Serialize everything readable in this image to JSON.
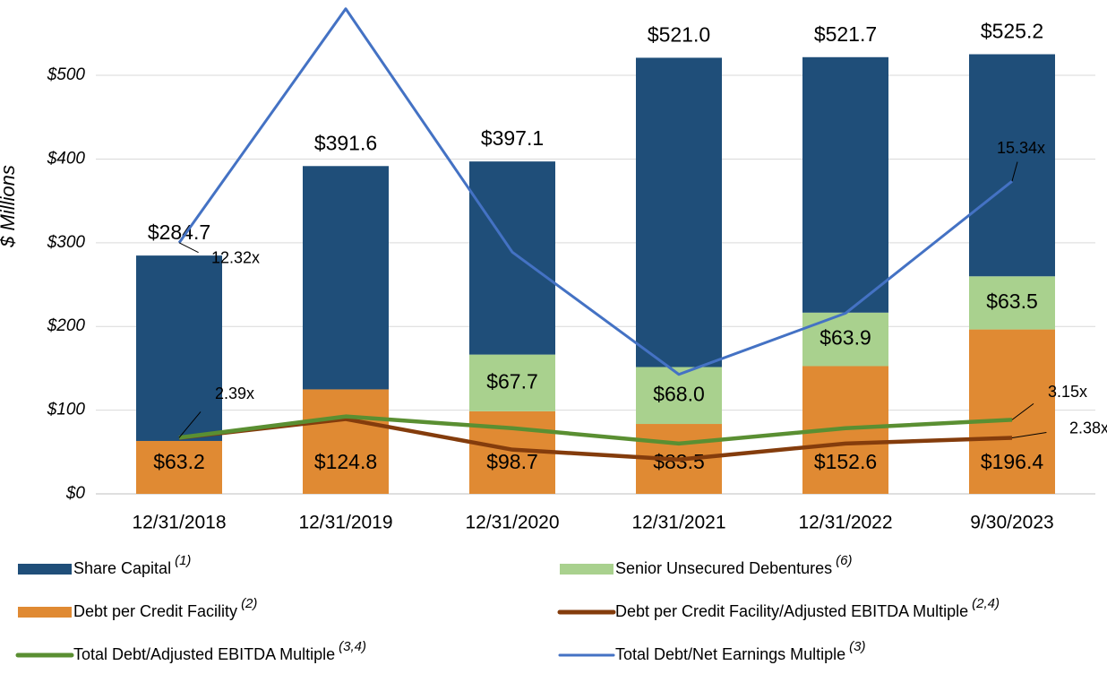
{
  "chart_data": {
    "type": "bar-line",
    "y_label": "$ Millions",
    "categories": [
      "12/31/2018",
      "12/31/2019",
      "12/31/2020",
      "12/31/2021",
      "12/31/2022",
      "9/30/2023"
    ],
    "ylim": [
      0,
      590
    ],
    "yticks": [
      {
        "value": 0,
        "label": "$0"
      },
      {
        "value": 100,
        "label": "$100"
      },
      {
        "value": 200,
        "label": "$200"
      },
      {
        "value": 300,
        "label": "$300"
      },
      {
        "value": 400,
        "label": "$400"
      },
      {
        "value": 500,
        "label": "$500"
      }
    ],
    "y2lim": [
      0,
      24.23
    ],
    "y3lim": [
      0,
      21
    ],
    "grid": true,
    "totals": {
      "values": [
        284.7,
        391.6,
        397.1,
        521.0,
        521.7,
        525.2
      ],
      "value_labels": [
        "$284.7",
        "$391.6",
        "$397.1",
        "$521.0",
        "$521.7",
        "$525.2"
      ]
    },
    "series": [
      {
        "name": "Debt per Credit Facility",
        "note": "(2)",
        "kind": "bar",
        "color": "#e08a33",
        "values": [
          63.2,
          124.8,
          98.7,
          83.5,
          152.6,
          196.4
        ],
        "value_labels": [
          "$63.2",
          "$124.8",
          "$98.7",
          "$83.5",
          "$152.6",
          "$196.4"
        ]
      },
      {
        "name": "Senior Unsecured Debentures",
        "note": "(6)",
        "kind": "bar",
        "color": "#a9d18e",
        "values": [
          null,
          null,
          67.7,
          68.0,
          63.9,
          63.5
        ],
        "value_labels": [
          null,
          null,
          "$67.7",
          "$68.0",
          "$63.9",
          "$63.5"
        ]
      },
      {
        "name": "Share Capital",
        "note": "(1)",
        "kind": "bar",
        "color": "#1f4e79",
        "values": [
          221.5,
          266.8,
          230.7,
          369.5,
          305.2,
          265.3
        ]
      },
      {
        "name": "Debt per Credit Facility/Adjusted EBITDA Multiple",
        "note": "(2,4)",
        "kind": "line",
        "axis": "y3",
        "color": "#843c0c",
        "values": [
          2.38,
          3.18,
          1.88,
          1.46,
          2.14,
          2.38
        ],
        "value_labels": [
          null,
          null,
          null,
          null,
          null,
          "2.38x"
        ]
      },
      {
        "name": "Total Debt/Adjusted EBITDA Multiple",
        "note": "(3,4)",
        "kind": "line",
        "axis": "y3",
        "color": "#5a8f32",
        "values": [
          2.39,
          3.29,
          2.79,
          2.14,
          2.79,
          3.15
        ],
        "value_labels": [
          "2.39x",
          null,
          null,
          null,
          null,
          "3.15x"
        ]
      },
      {
        "name": "Total Debt/Net Earnings Multiple",
        "note": "(3)",
        "kind": "line",
        "axis": "y2",
        "color": "#4472c4",
        "values": [
          12.32,
          23.8,
          11.86,
          5.86,
          8.86,
          15.34
        ],
        "value_labels": [
          "12.32x",
          null,
          null,
          null,
          null,
          "15.34x"
        ]
      }
    ]
  }
}
